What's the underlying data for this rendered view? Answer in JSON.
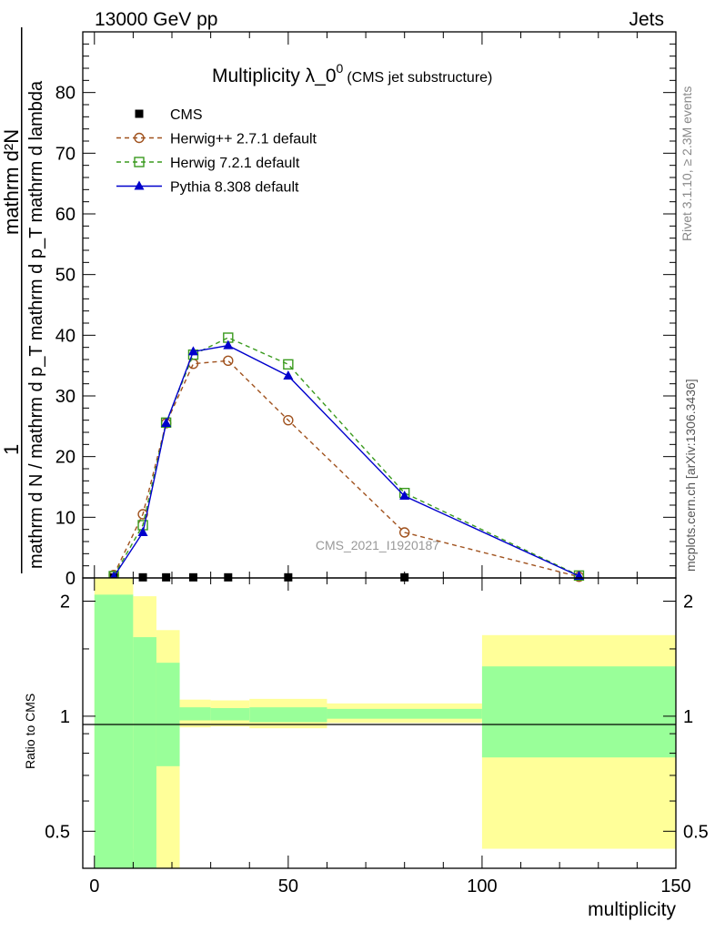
{
  "header": {
    "left": "13000 GeV pp",
    "right": "Jets"
  },
  "side_labels": {
    "rivet": "Rivet 3.1.10, ≥ 2.3M events",
    "mcplots": "mcplots.cern.ch [arXiv:1306.3436]"
  },
  "chart_data": [
    {
      "type": "line",
      "title": "Multiplicity λ_0",
      "title_superscript": "0",
      "subtitle": "(CMS jet substructure)",
      "watermark": "CMS_2021_I1920187",
      "ylabel_numerator": "1",
      "ylabel_numerator_right": "mathrm d²N",
      "ylabel_denominator": "mathrm d N / mathrm d p_T mathrm d p_T mathrm d lambda",
      "xlim": [
        -3,
        150
      ],
      "ylim": [
        0,
        90
      ],
      "yticks": [
        0,
        10,
        20,
        30,
        40,
        50,
        60,
        70,
        80
      ],
      "grid": false,
      "legend_position": "top-left",
      "series": [
        {
          "name": "CMS",
          "color": "#000000",
          "marker": "square-filled",
          "line": "none",
          "x": [
            5,
            12.5,
            18.5,
            25.5,
            34.5,
            50,
            80
          ],
          "y": [
            0.1,
            0.1,
            0.1,
            0.1,
            0.1,
            0.1,
            0.1
          ]
        },
        {
          "name": "Herwig++ 2.7.1 default",
          "color": "#a0521e",
          "marker": "circle-open",
          "line": "dashed",
          "x": [
            5,
            12.5,
            18.5,
            25.5,
            34.5,
            50,
            80,
            125
          ],
          "y": [
            0.5,
            10.5,
            25.5,
            35.3,
            35.8,
            26,
            7.5,
            0.2
          ]
        },
        {
          "name": "Herwig 7.2.1 default",
          "color": "#3a9a1e",
          "marker": "square-open",
          "line": "dashed",
          "x": [
            5,
            12.5,
            18.5,
            25.5,
            34.5,
            50,
            80,
            125
          ],
          "y": [
            0.3,
            8.7,
            25.6,
            36.8,
            39.6,
            35.2,
            14.0,
            0.4
          ]
        },
        {
          "name": "Pythia 8.308 default",
          "color": "#0000cc",
          "marker": "triangle-filled",
          "line": "solid",
          "x": [
            5,
            12.5,
            18.5,
            25.5,
            34.5,
            50,
            80,
            125
          ],
          "y": [
            0.2,
            7.5,
            25.5,
            37.3,
            38.3,
            33.3,
            13.5,
            0.3
          ]
        }
      ]
    },
    {
      "type": "area",
      "ylabel": "Ratio to CMS",
      "xlabel": "multiplicity",
      "xlim": [
        -3,
        150
      ],
      "ylim": [
        0.4,
        2.3
      ],
      "log_y": true,
      "xticks": [
        0,
        50,
        100,
        150
      ],
      "yticks": [
        0.5,
        1,
        2
      ],
      "reference_line": 1,
      "band_colors": {
        "inner": "#99ff99",
        "outer": "#ffff99"
      },
      "bins": [
        {
          "xlo": 0,
          "xhi": 10,
          "inner": [
            0.4,
            2.08
          ],
          "outer": [
            0.4,
            2.3
          ]
        },
        {
          "xlo": 10,
          "xhi": 16,
          "inner": [
            0.4,
            1.61
          ],
          "outer": [
            0.45,
            2.06
          ]
        },
        {
          "xlo": 16,
          "xhi": 22,
          "inner": [
            0.74,
            1.38
          ],
          "outer": [
            0.4,
            1.68
          ]
        },
        {
          "xlo": 22,
          "xhi": 30,
          "inner": [
            0.975,
            1.055
          ],
          "outer": [
            0.935,
            1.105
          ]
        },
        {
          "xlo": 30,
          "xhi": 40,
          "inner": [
            0.975,
            1.05
          ],
          "outer": [
            0.94,
            1.1
          ]
        },
        {
          "xlo": 40,
          "xhi": 60,
          "inner": [
            0.965,
            1.055
          ],
          "outer": [
            0.93,
            1.11
          ]
        },
        {
          "xlo": 60,
          "xhi": 100,
          "inner": [
            0.985,
            1.045
          ],
          "outer": [
            0.96,
            1.08
          ]
        },
        {
          "xlo": 100,
          "xhi": 150,
          "inner": [
            0.78,
            1.35
          ],
          "outer": [
            0.45,
            1.63
          ]
        }
      ]
    }
  ]
}
